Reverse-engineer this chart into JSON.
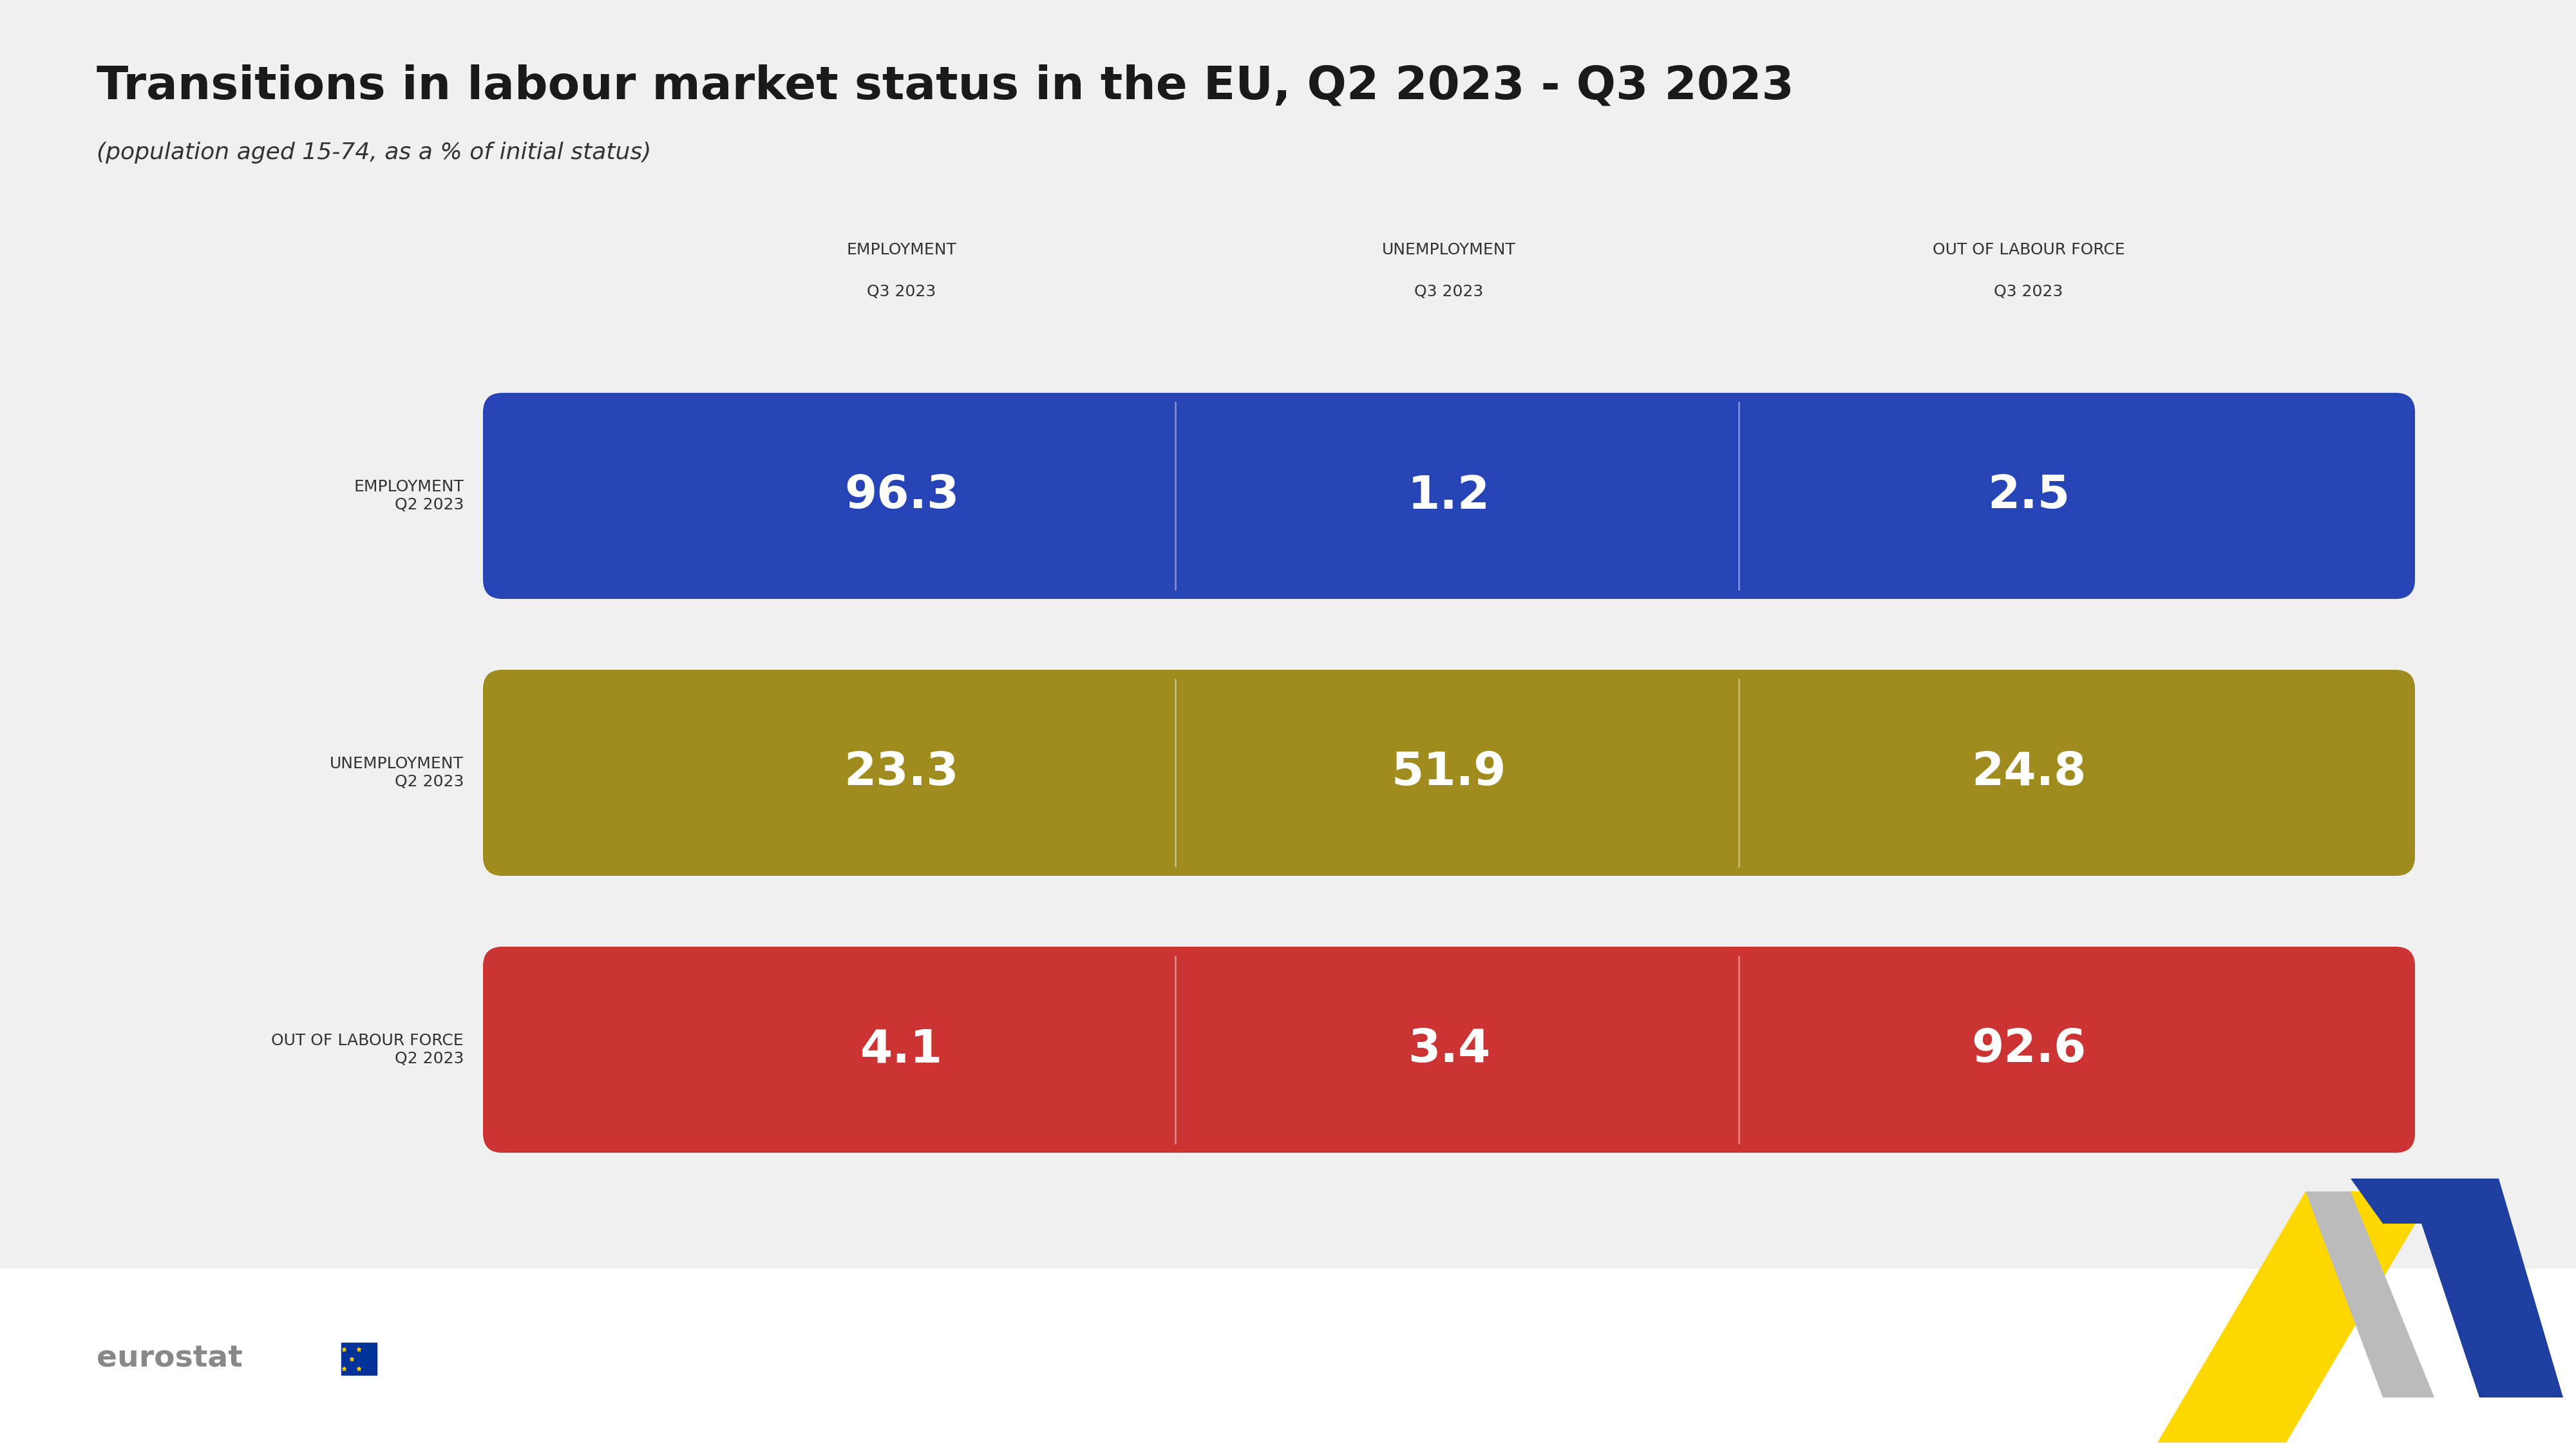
{
  "title": "Transitions in labour market status in the EU, Q2 2023 - Q3 2023",
  "subtitle": "(population aged 15-74, as a % of initial status)",
  "background_color": "#f0f0f0",
  "white_strip_color": "#ffffff",
  "row_labels": [
    "EMPLOYMENT\nQ2 2023",
    "UNEMPLOYMENT\nQ2 2023",
    "OUT OF LABOUR FORCE\nQ2 2023"
  ],
  "col_headers_line1": [
    "EMPLOYMENT",
    "UNEMPLOYMENT",
    "OUT OF LABOUR FORCE"
  ],
  "col_headers_line2": [
    "Q3 2023",
    "Q3 2023",
    "Q3 2023"
  ],
  "values": [
    [
      "96.3",
      "1.2",
      "2.5"
    ],
    [
      "23.3",
      "51.9",
      "24.8"
    ],
    [
      "4.1",
      "3.4",
      "92.6"
    ]
  ],
  "row_colors": [
    "#1f3a9e",
    "#9e8a1f",
    "#c0392b"
  ],
  "row_colors_hex": [
    "#2742b4",
    "#a89020",
    "#cc3333"
  ],
  "cell_text_color": "#ffffff",
  "title_color": "#1a1a1a",
  "subtitle_color": "#333333",
  "header_color": "#333333",
  "row_label_color": "#333333",
  "value_fontsize": 52,
  "header_fontsize": 18,
  "row_label_fontsize": 18,
  "title_fontsize": 52,
  "subtitle_fontsize": 26
}
